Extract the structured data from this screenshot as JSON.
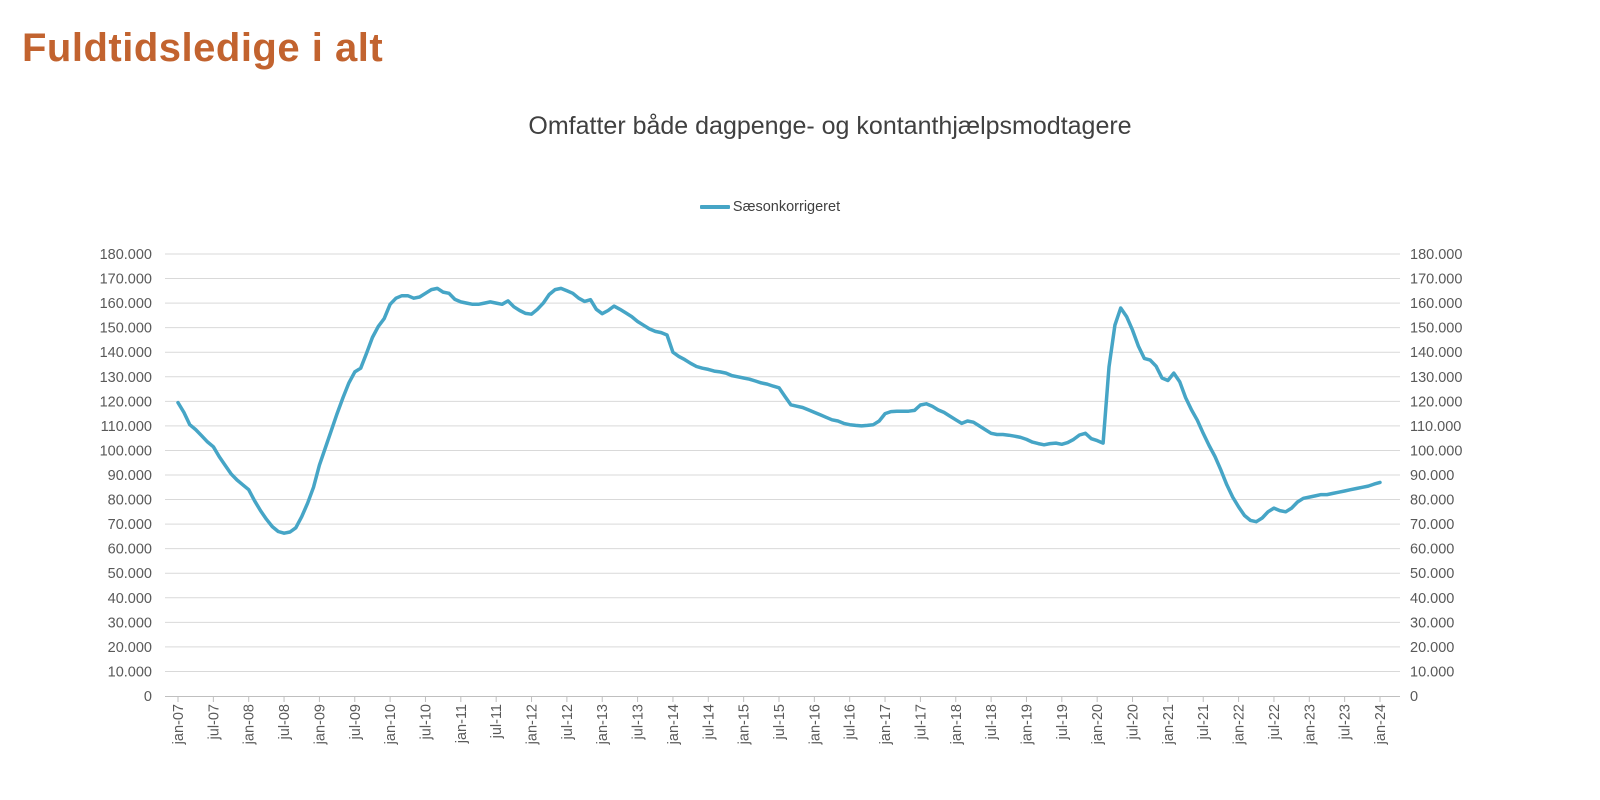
{
  "page": {
    "title": "Fuldtidsledige i alt"
  },
  "colors": {
    "title": "#C2632F",
    "series_line": "#46A5C6",
    "gridline": "#D9D9D9",
    "axis_line": "#BFBFBF",
    "axis_text": "#595959",
    "subtitle_text": "#404040"
  },
  "chart_data": {
    "type": "line",
    "title": "Omfatter både dagpenge- og kontanthjælpsmodtagere",
    "legend_position": "top-center",
    "grid": "horizontal",
    "y_axis_sides": [
      "left",
      "right"
    ],
    "ylim": [
      0,
      180000
    ],
    "y_tick_step": 10000,
    "y_tick_labels": [
      "0",
      "10.000",
      "20.000",
      "30.000",
      "40.000",
      "50.000",
      "60.000",
      "70.000",
      "80.000",
      "90.000",
      "100.000",
      "110.000",
      "120.000",
      "130.000",
      "140.000",
      "150.000",
      "160.000",
      "170.000",
      "180.000"
    ],
    "x_unit": "month",
    "x_start": "jan-07",
    "x_end": "jan-24",
    "x_tick_every_months": 6,
    "x_tick_labels": [
      "jan-07",
      "jul-07",
      "jan-08",
      "jul-08",
      "jan-09",
      "jul-09",
      "jan-10",
      "jul-10",
      "jan-11",
      "jul-11",
      "jan-12",
      "jul-12",
      "jan-13",
      "jul-13",
      "jan-14",
      "jul-14",
      "jan-15",
      "jul-15",
      "jan-16",
      "jul-16",
      "jan-17",
      "jul-17",
      "jan-18",
      "jul-18",
      "jan-19",
      "jul-19",
      "jan-20",
      "jul-20",
      "jan-21",
      "jul-21",
      "jan-22",
      "jul-22",
      "jan-23",
      "jul-23",
      "jan-24"
    ],
    "series": [
      {
        "name": "Sæsonkorrigeret",
        "color": "#46A5C6",
        "values": [
          119500,
          115500,
          110500,
          108500,
          106000,
          103500,
          101500,
          97500,
          94000,
          90500,
          88000,
          86000,
          84000,
          79500,
          75500,
          72000,
          69000,
          67000,
          66300,
          66800,
          68500,
          73000,
          78500,
          85000,
          94000,
          101000,
          108000,
          115000,
          121500,
          127500,
          132000,
          133500,
          139500,
          146000,
          150500,
          153700,
          159500,
          162000,
          163000,
          163000,
          162000,
          162500,
          164000,
          165500,
          166000,
          164500,
          164000,
          161500,
          160500,
          160000,
          159500,
          159500,
          160000,
          160500,
          160000,
          159500,
          160900,
          158500,
          157000,
          155800,
          155500,
          157500,
          160000,
          163500,
          165500,
          166000,
          165000,
          164000,
          162000,
          160700,
          161400,
          157500,
          155700,
          157000,
          158800,
          157500,
          156000,
          154500,
          152500,
          151000,
          149500,
          148500,
          148000,
          147000,
          140000,
          138300,
          137000,
          135500,
          134200,
          133500,
          133000,
          132300,
          132000,
          131500,
          130500,
          130000,
          129500,
          129000,
          128300,
          127500,
          127000,
          126200,
          125500,
          122000,
          118600,
          118000,
          117500,
          116500,
          115500,
          114500,
          113500,
          112500,
          112000,
          111000,
          110500,
          110200,
          110000,
          110200,
          110500,
          112000,
          115000,
          115800,
          116000,
          116000,
          116000,
          116300,
          118500,
          119000,
          118000,
          116500,
          115500,
          114000,
          112500,
          111000,
          112000,
          111500,
          110000,
          108500,
          107000,
          106500,
          106500,
          106200,
          105800,
          105300,
          104500,
          103400,
          102800,
          102300,
          102800,
          103000,
          102500,
          103200,
          104500,
          106300,
          107000,
          104800,
          104000,
          103000,
          134000,
          151000,
          158000,
          154500,
          149000,
          142500,
          137500,
          136800,
          134300,
          129500,
          128500,
          131500,
          128000,
          121500,
          116500,
          112300,
          107000,
          102000,
          97500,
          92000,
          86000,
          81000,
          77000,
          73500,
          71500,
          71000,
          72500,
          75000,
          76500,
          75500,
          75000,
          76500,
          79000,
          80500,
          81000,
          81500,
          82000,
          82000,
          82500,
          83000,
          83500,
          84000,
          84500,
          85000,
          85500,
          86300,
          87000
        ]
      }
    ]
  }
}
